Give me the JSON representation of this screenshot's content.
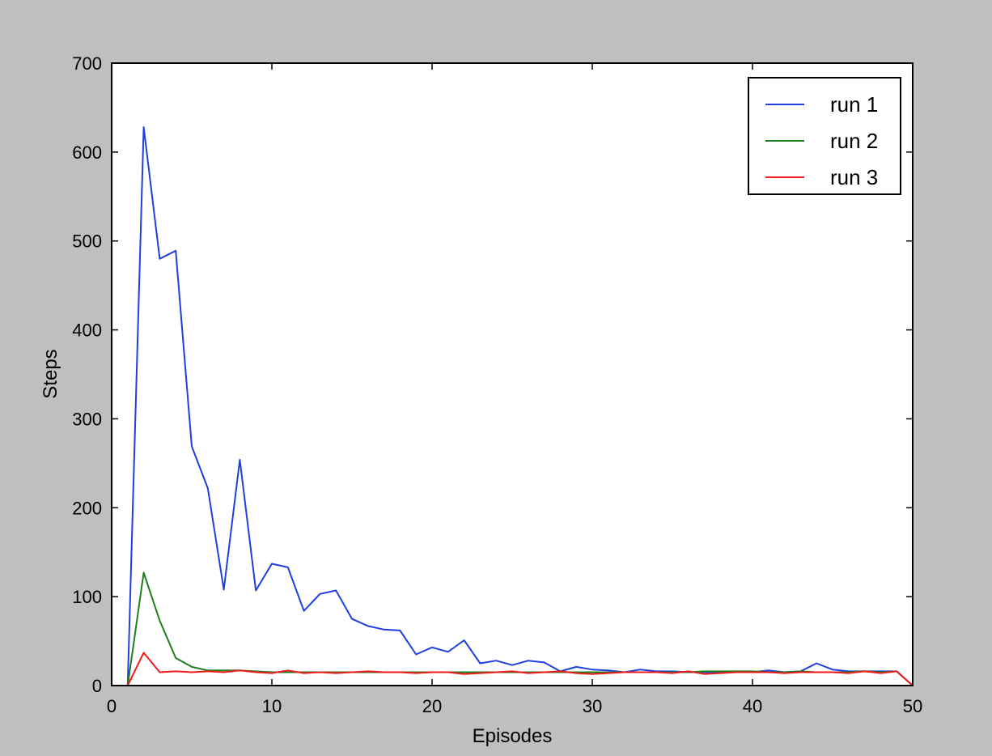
{
  "chart_data": {
    "type": "line",
    "title": "",
    "xlabel": "Episodes",
    "ylabel": "Steps",
    "xlim": [
      0,
      50
    ],
    "ylim": [
      0,
      700
    ],
    "xticks": [
      0,
      10,
      20,
      30,
      40,
      50
    ],
    "yticks": [
      0,
      100,
      200,
      300,
      400,
      500,
      600,
      700
    ],
    "xtick_labels": [
      "0",
      "10",
      "20",
      "30",
      "40",
      "50"
    ],
    "ytick_labels": [
      "0",
      "100",
      "200",
      "300",
      "400",
      "500",
      "600",
      "700"
    ],
    "grid": false,
    "legend_position": "top-right",
    "x": [
      1,
      2,
      3,
      4,
      5,
      6,
      7,
      8,
      9,
      10,
      11,
      12,
      13,
      14,
      15,
      16,
      17,
      18,
      19,
      20,
      21,
      22,
      23,
      24,
      25,
      26,
      27,
      28,
      29,
      30,
      31,
      32,
      33,
      34,
      35,
      36,
      37,
      38,
      39,
      40,
      41,
      42,
      43,
      44,
      45,
      46,
      47,
      48,
      49,
      50
    ],
    "series": [
      {
        "name": "run 1",
        "color": "#1f3fe0",
        "values": [
          0,
          628,
          480,
          489,
          269,
          222,
          108,
          254,
          107,
          137,
          133,
          84,
          103,
          107,
          75,
          67,
          63,
          62,
          35,
          43,
          38,
          51,
          25,
          28,
          23,
          28,
          26,
          16,
          21,
          18,
          17,
          15,
          18,
          16,
          16,
          15,
          15,
          15,
          15,
          15,
          17,
          15,
          16,
          25,
          18,
          16,
          16,
          16,
          16,
          0
        ]
      },
      {
        "name": "run 2",
        "color": "#1e7d1e",
        "values": [
          0,
          127,
          73,
          31,
          21,
          17,
          17,
          17,
          16,
          15,
          15,
          15,
          15,
          15,
          15,
          15,
          15,
          15,
          15,
          15,
          15,
          15,
          15,
          15,
          15,
          15,
          15,
          15,
          15,
          15,
          15,
          15,
          15,
          15,
          15,
          15,
          16,
          16,
          16,
          16,
          15,
          15,
          16,
          15,
          15,
          15,
          16,
          15,
          16,
          0
        ]
      },
      {
        "name": "run 3",
        "color": "#ef1b1b",
        "values": [
          0,
          37,
          15,
          16,
          15,
          16,
          15,
          17,
          15,
          14,
          17,
          14,
          15,
          14,
          15,
          16,
          15,
          15,
          14,
          15,
          15,
          13,
          14,
          15,
          16,
          14,
          15,
          16,
          14,
          13,
          14,
          15,
          15,
          15,
          14,
          16,
          13,
          14,
          15,
          15,
          15,
          14,
          15,
          15,
          15,
          14,
          16,
          14,
          16,
          0
        ]
      }
    ]
  }
}
